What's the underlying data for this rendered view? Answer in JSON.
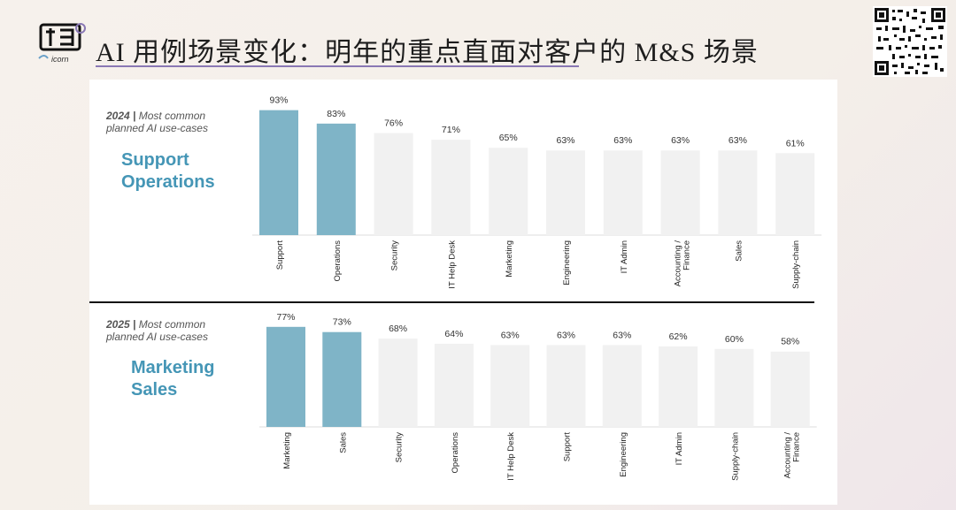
{
  "header": {
    "title": "AI 用例场景变化：明年的重点直面对客户的 M&S 场景",
    "logo_text": "icorn",
    "accent_color": "#8a78b4"
  },
  "colors": {
    "highlight": "#7fb4c7",
    "bar": "#f1f1f1",
    "heading": "#4596b6"
  },
  "chart_data": [
    {
      "type": "bar",
      "year_label": "2024 |",
      "subtitle_line1": "Most common",
      "subtitle_line2": "planned AI use-cases",
      "highlight_line1": "Support",
      "highlight_line2": "Operations",
      "categories": [
        "Support",
        "Operations",
        "Security",
        "IT Help Desk",
        "Marketing",
        "Engineering",
        "IT Admin",
        "Accounting / Finance",
        "Sales",
        "Supply-chain"
      ],
      "values": [
        93,
        83,
        76,
        71,
        65,
        63,
        63,
        63,
        63,
        61
      ],
      "value_labels": [
        "93%",
        "83%",
        "76%",
        "71%",
        "65%",
        "63%",
        "63%",
        "63%",
        "63%",
        "61%"
      ],
      "highlighted": [
        true,
        true,
        false,
        false,
        false,
        false,
        false,
        false,
        false,
        false
      ]
    },
    {
      "type": "bar",
      "year_label": "2025 |",
      "subtitle_line1": "Most common",
      "subtitle_line2": "planned AI use-cases",
      "highlight_line1": "Marketing",
      "highlight_line2": "Sales",
      "categories": [
        "Marketing",
        "Sales",
        "Security",
        "Operations",
        "IT Help Desk",
        "Support",
        "Engineering",
        "IT Admin",
        "Supply-chain",
        "Accounting / Finance"
      ],
      "values": [
        77,
        73,
        68,
        64,
        63,
        63,
        63,
        62,
        60,
        58
      ],
      "value_labels": [
        "77%",
        "73%",
        "68%",
        "64%",
        "63%",
        "63%",
        "63%",
        "62%",
        "60%",
        "58%"
      ],
      "highlighted": [
        true,
        true,
        false,
        false,
        false,
        false,
        false,
        false,
        false,
        false
      ]
    }
  ]
}
